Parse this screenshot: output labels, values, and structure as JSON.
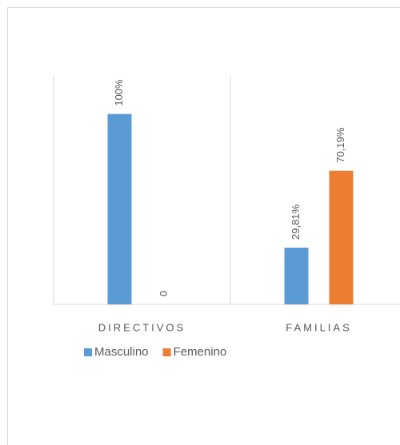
{
  "chart_data": {
    "type": "bar",
    "categories": [
      "DIRECTIVOS",
      "FAMILIAS"
    ],
    "series": [
      {
        "name": "Masculino",
        "color": "#5b9bd5",
        "values": [
          100,
          29.81
        ],
        "value_labels": [
          "100%",
          "29,81%"
        ]
      },
      {
        "name": "Femenino",
        "color": "#ed7d31",
        "values": [
          0,
          70.19
        ],
        "value_labels": [
          "0",
          "70,19%"
        ]
      }
    ],
    "ylim": [
      0,
      120
    ],
    "legend": "bottom-left"
  }
}
